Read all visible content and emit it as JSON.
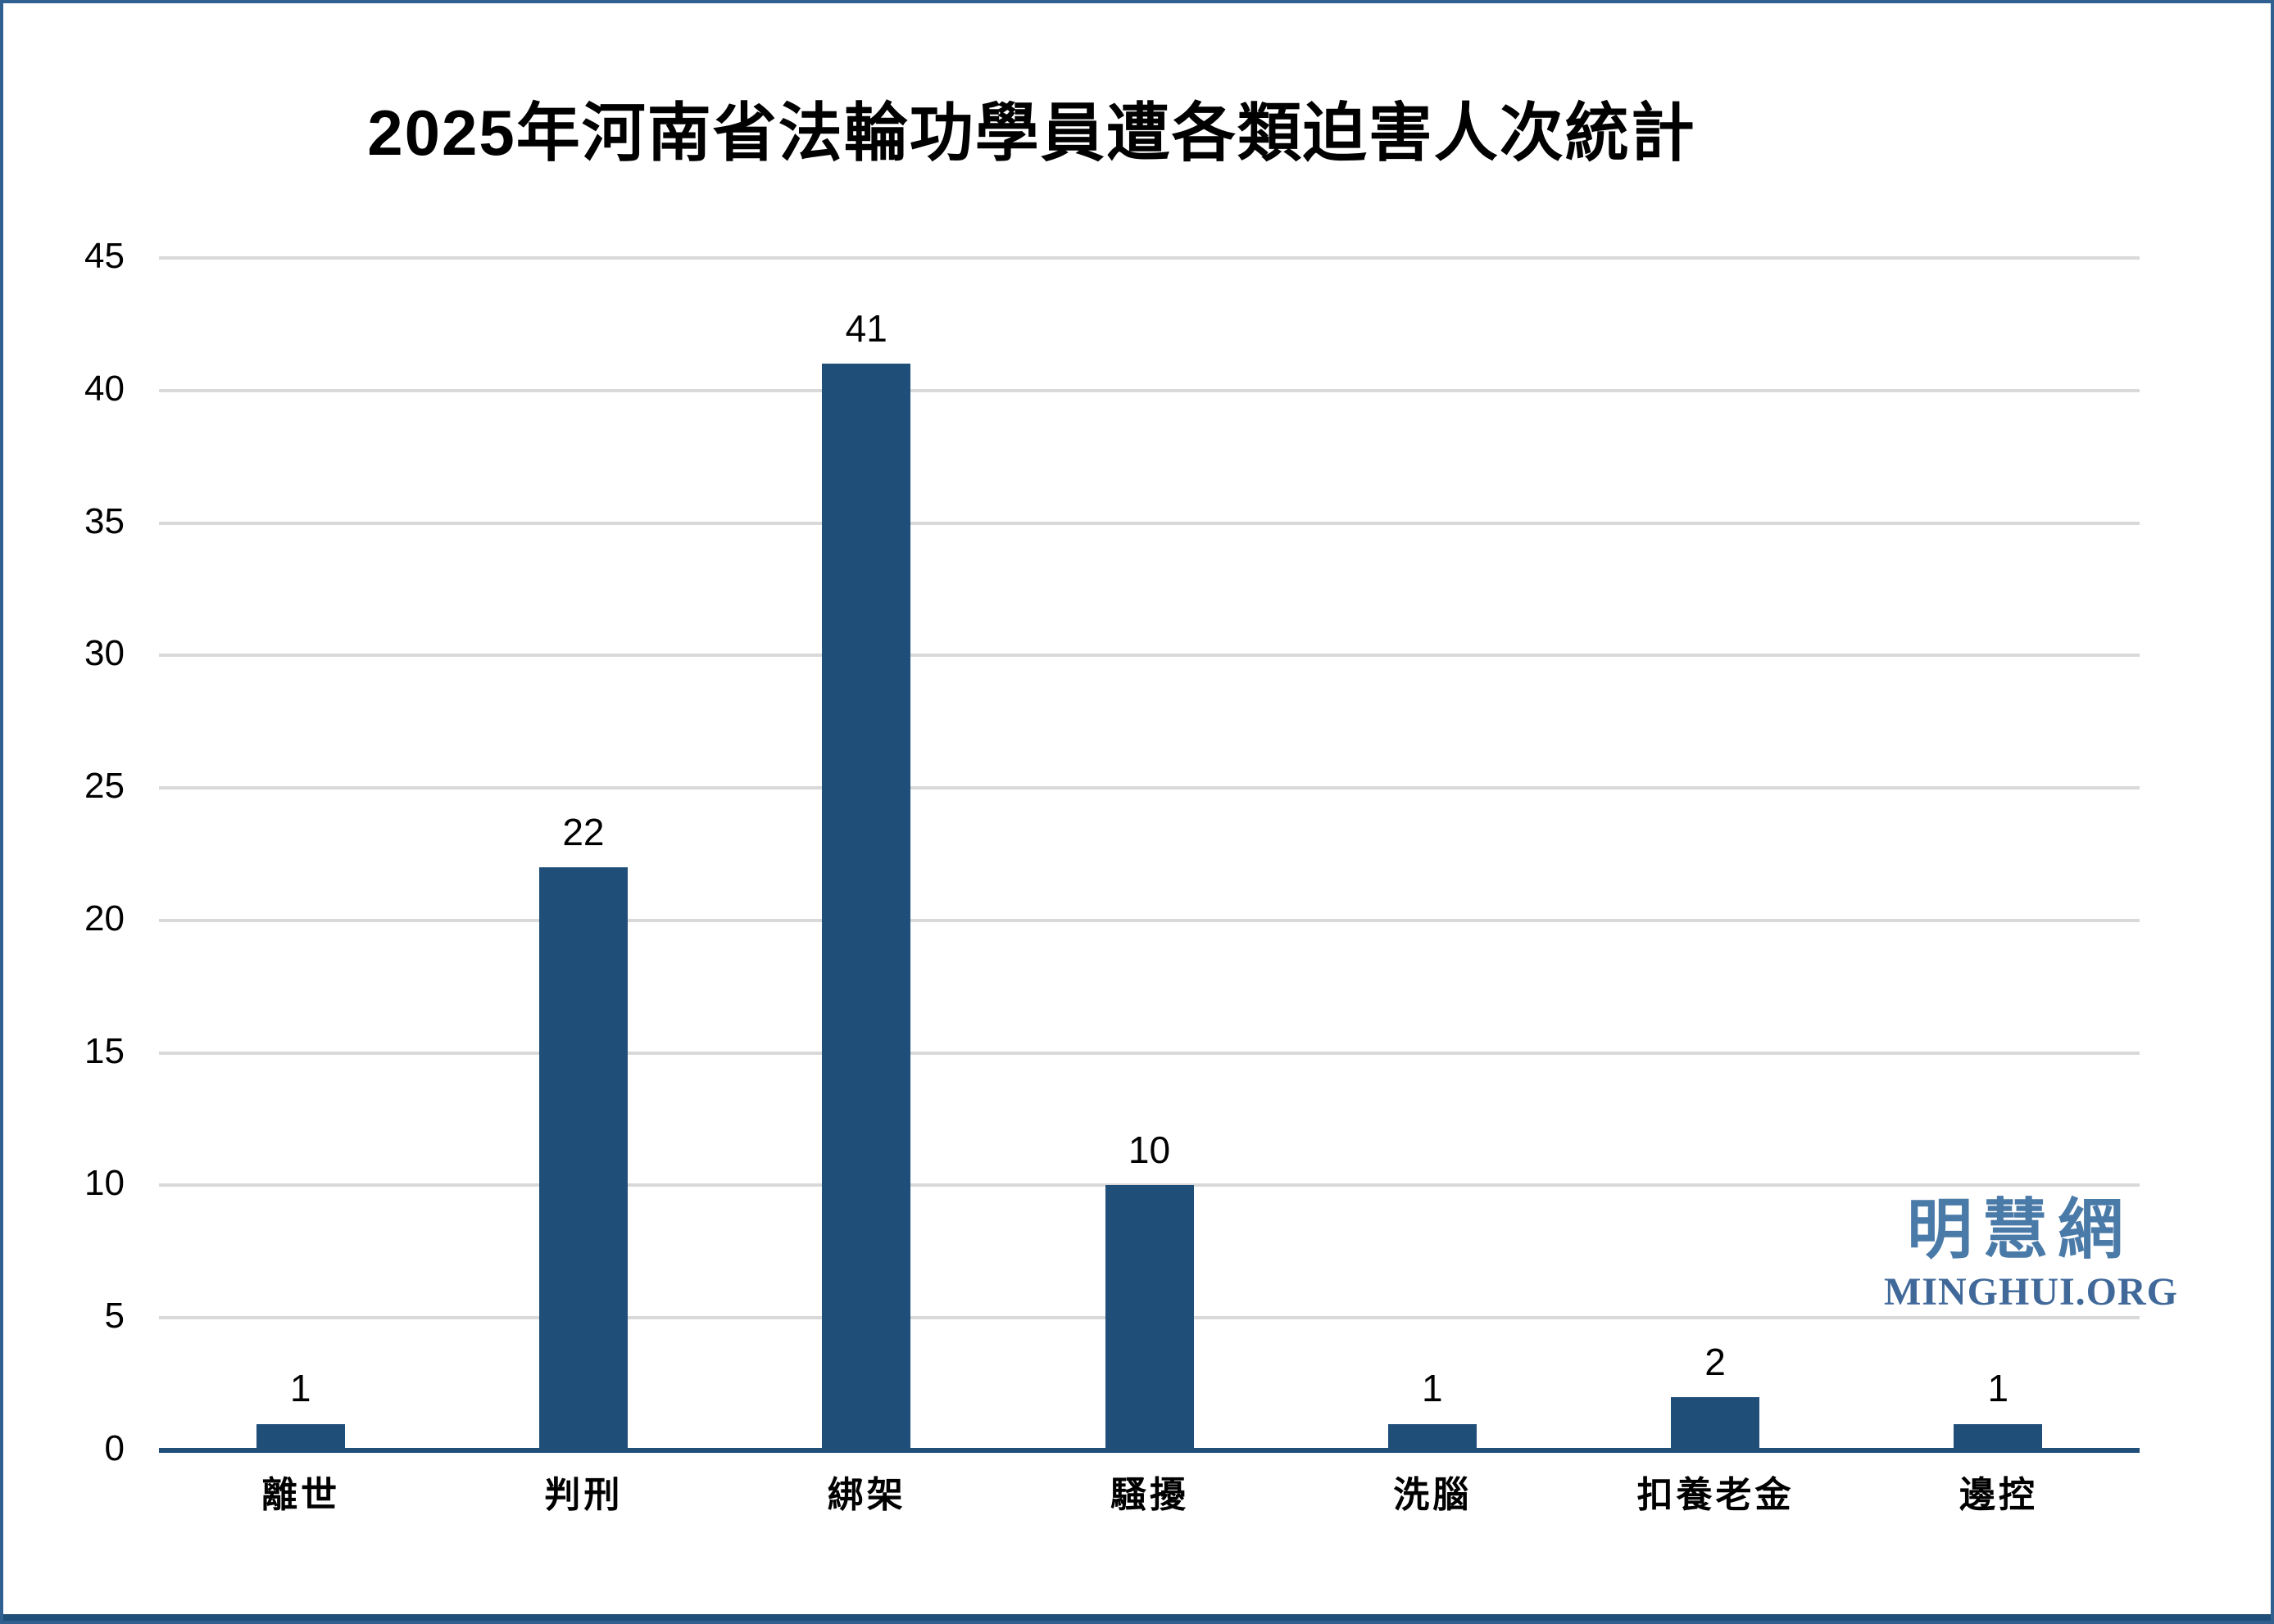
{
  "page": {
    "border_color": "#2F6090",
    "background": "#FFFFFF"
  },
  "watermark": {
    "zh": "明慧網",
    "en": "MINGHUI.ORG",
    "zh_color": "#4A7AA8",
    "en_color": "#40699A"
  },
  "chart_data": {
    "type": "bar",
    "title": "2025年河南省法輪功學員遭各類迫害人次統計",
    "categories": [
      "離世",
      "判刑",
      "綁架",
      "騷擾",
      "洗腦",
      "扣養老金",
      "邊控"
    ],
    "values": [
      1,
      22,
      41,
      10,
      1,
      2,
      1
    ],
    "xlabel": "",
    "ylabel": "",
    "ylim": [
      0,
      45
    ],
    "ytick_step": 5,
    "ytick_labels": [
      "0",
      "5",
      "10",
      "15",
      "20",
      "25",
      "30",
      "35",
      "40",
      "45"
    ],
    "grid": true,
    "legend": false,
    "data_labels": true,
    "bar_color": "#1F4E79",
    "axis_color": "#1F4E79",
    "gridline_color": "#D9D9D9",
    "text_color": "#000000"
  }
}
